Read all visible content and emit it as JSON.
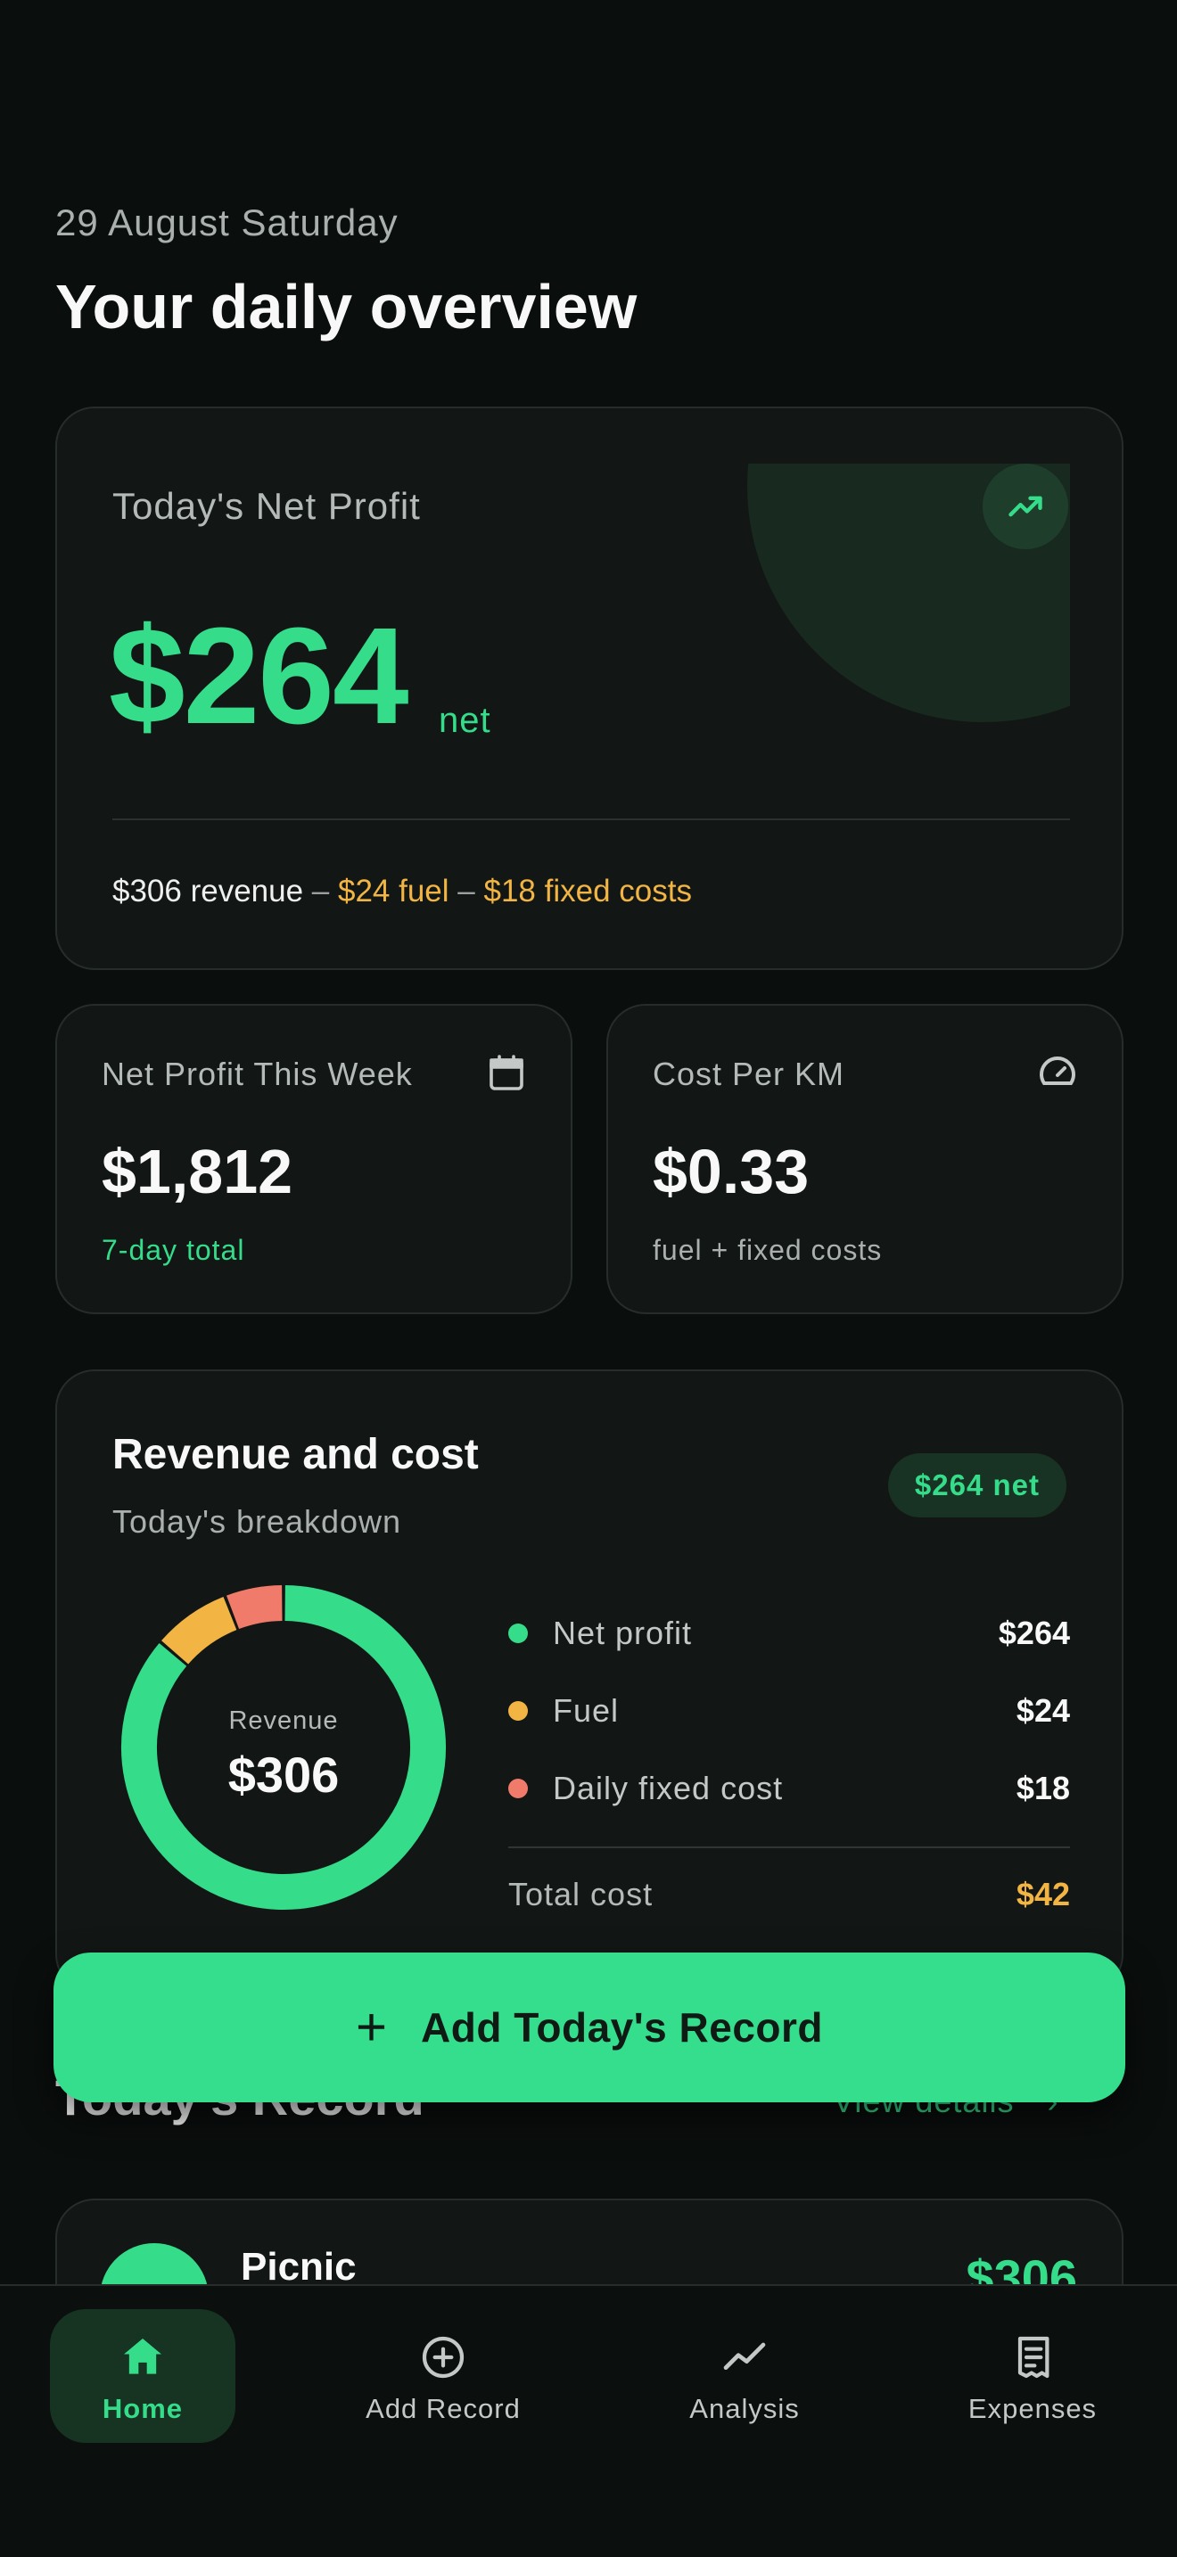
{
  "header": {
    "date": "29 August Saturday",
    "title": "Your daily overview"
  },
  "hero": {
    "label": "Today's Net Profit",
    "amount": "$264",
    "suffix": "net",
    "revenue": "$306 revenue",
    "sep1": " – ",
    "fuel": "$24 fuel",
    "sep2": " – ",
    "fixed": "$18 fixed costs",
    "trend_icon": "trending-up-icon"
  },
  "week": {
    "label": "Net Profit This Week",
    "value": "$1,812",
    "sub": "7-day total",
    "icon": "calendar-icon"
  },
  "cost_per_km": {
    "label": "Cost Per KM",
    "value": "$0.33",
    "sub": "fuel + fixed costs",
    "icon": "gauge-icon"
  },
  "revenue_cost": {
    "title": "Revenue and cost",
    "subtitle": "Today's breakdown",
    "pill": "$264 net",
    "donut_label": "Revenue",
    "donut_value": "$306",
    "items": [
      {
        "name": "Net profit",
        "amount": "$264",
        "color": "#35dc8a"
      },
      {
        "name": "Fuel",
        "amount": "$24",
        "color": "#f2b544"
      },
      {
        "name": "Daily fixed cost",
        "amount": "$18",
        "color": "#f07b6b"
      }
    ],
    "total_label": "Total cost",
    "total_amount": "$42"
  },
  "chart_data": {
    "type": "pie",
    "categories": [
      "Net profit",
      "Fuel",
      "Daily fixed cost"
    ],
    "values": [
      264,
      24,
      18
    ],
    "colors": [
      "#35dc8a",
      "#f2b544",
      "#f07b6b"
    ]
  },
  "record": {
    "title": "Today's Record",
    "link": "View details",
    "item_name": "Picnic",
    "item_amount": "$306"
  },
  "cta": {
    "label": "Add Today's Record"
  },
  "nav": {
    "items": [
      {
        "label": "Home",
        "icon": "home-icon",
        "active": true
      },
      {
        "label": "Add Record",
        "icon": "plus-circle-icon",
        "active": false
      },
      {
        "label": "Analysis",
        "icon": "chart-line-icon",
        "active": false
      },
      {
        "label": "Expenses",
        "icon": "receipt-icon",
        "active": false
      }
    ]
  },
  "colors": {
    "accent": "#35dc8a",
    "warning": "#f2b544",
    "danger": "#f07b6b",
    "background": "#0a0e0d",
    "card": "#121715"
  }
}
